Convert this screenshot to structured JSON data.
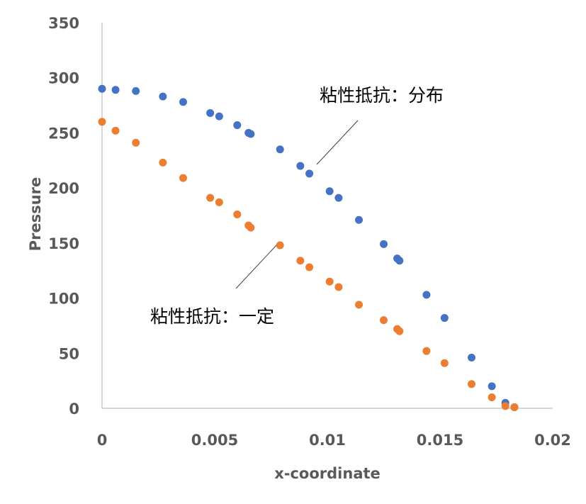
{
  "chart_data": {
    "type": "scatter",
    "xlabel": "x-coordinate",
    "ylabel": "Pressure",
    "xlim": [
      0,
      0.02
    ],
    "ylim": [
      0,
      350
    ],
    "x_ticks": [
      "0",
      "0.005",
      "0.01",
      "0.015",
      "0.02"
    ],
    "y_ticks": [
      "0",
      "50",
      "100",
      "150",
      "200",
      "250",
      "300",
      "350"
    ],
    "grid": false,
    "legend": "none",
    "series": [
      {
        "color": "#4472C4",
        "annotation": "粘性抵抗：分布",
        "points": [
          [
            0.0,
            290
          ],
          [
            0.0006,
            289
          ],
          [
            0.0015,
            288
          ],
          [
            0.0027,
            283
          ],
          [
            0.0036,
            278
          ],
          [
            0.0048,
            268
          ],
          [
            0.0052,
            265
          ],
          [
            0.006,
            257
          ],
          [
            0.0065,
            250
          ],
          [
            0.0066,
            249
          ],
          [
            0.0079,
            235
          ],
          [
            0.0088,
            220
          ],
          [
            0.0092,
            213
          ],
          [
            0.0101,
            197
          ],
          [
            0.0105,
            191
          ],
          [
            0.0114,
            171
          ],
          [
            0.0125,
            149
          ],
          [
            0.0131,
            136
          ],
          [
            0.0132,
            134
          ],
          [
            0.0144,
            103
          ],
          [
            0.0152,
            82
          ],
          [
            0.0164,
            46
          ],
          [
            0.0173,
            20
          ],
          [
            0.0179,
            5
          ],
          [
            0.0183,
            1
          ]
        ]
      },
      {
        "color": "#ED7D31",
        "annotation": "粘性抵抗：一定",
        "points": [
          [
            0.0,
            260
          ],
          [
            0.0006,
            252
          ],
          [
            0.0015,
            241
          ],
          [
            0.0027,
            223
          ],
          [
            0.0036,
            209
          ],
          [
            0.0048,
            191
          ],
          [
            0.0052,
            187
          ],
          [
            0.006,
            176
          ],
          [
            0.0065,
            166
          ],
          [
            0.0066,
            164
          ],
          [
            0.0079,
            148
          ],
          [
            0.0088,
            134
          ],
          [
            0.0092,
            128
          ],
          [
            0.0101,
            115
          ],
          [
            0.0105,
            110
          ],
          [
            0.0114,
            94
          ],
          [
            0.0125,
            80
          ],
          [
            0.0131,
            72
          ],
          [
            0.0132,
            70
          ],
          [
            0.0144,
            52
          ],
          [
            0.0152,
            41
          ],
          [
            0.0164,
            22
          ],
          [
            0.0173,
            10
          ],
          [
            0.0179,
            2
          ],
          [
            0.0183,
            1
          ]
        ]
      }
    ]
  }
}
